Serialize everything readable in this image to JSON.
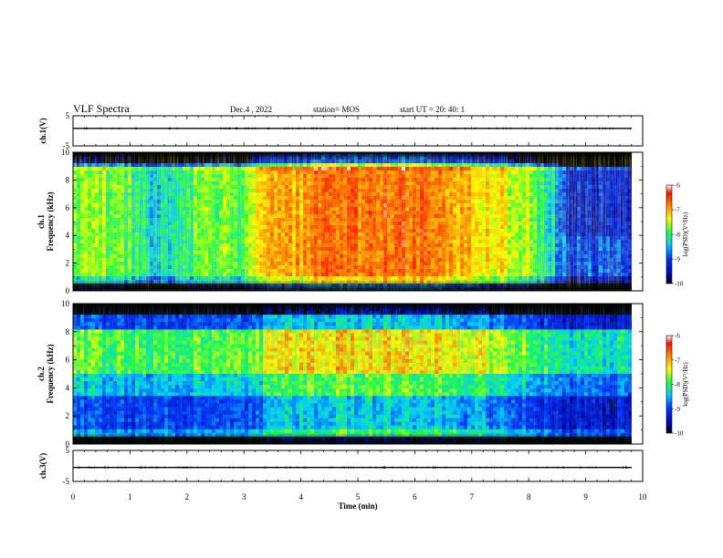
{
  "header": {
    "title": "VLF Spectra",
    "date": "Dec.4 , 2022",
    "station": "station= MOS",
    "start": "start UT =  20: 40: 1"
  },
  "chart_data": {
    "type": "heatmap",
    "x": {
      "label": "Time (min)",
      "range": [
        0,
        10
      ],
      "ticks": [
        "0",
        "1",
        "2",
        "3",
        "4",
        "5",
        "6",
        "7",
        "8",
        "9",
        "10"
      ]
    },
    "panels": [
      {
        "id": "ch1-waveform",
        "ylabel": "ch.1(V)",
        "yrange": [
          -5,
          5
        ],
        "ticks": [
          "5",
          "-5"
        ]
      },
      {
        "id": "ch1-spectrogram",
        "ylabel": "ch.1 Frequency (kHz)",
        "yrange": [
          0,
          10
        ],
        "ticks": [
          "0",
          "2",
          "4",
          "6",
          "8",
          "10"
        ],
        "colorbar": {
          "label": "log(PSD)(V²/Hz)",
          "range": [
            -10,
            -6
          ],
          "ticks": [
            "-6",
            "-7",
            "-8",
            "-9",
            "-10"
          ]
        }
      },
      {
        "id": "ch2-spectrogram",
        "ylabel": "ch.2 Frequency (kHz)",
        "yrange": [
          0,
          10
        ],
        "ticks": [
          "0",
          "2",
          "4",
          "6",
          "8",
          "10"
        ],
        "colorbar": {
          "label": "log(PSD)(V²/Hz)",
          "range": [
            -10,
            -6
          ],
          "ticks": [
            "-6",
            "-7",
            "-8",
            "-9",
            "-10"
          ]
        }
      },
      {
        "id": "ch3-waveform",
        "ylabel": "ch.3(V)",
        "yrange": [
          -5,
          5
        ],
        "ticks": [
          "5",
          "-5"
        ]
      }
    ],
    "ch1_level_profile": [
      [
        0,
        -7.8
      ],
      [
        0.5,
        -7.6
      ],
      [
        1.0,
        -8.0
      ],
      [
        1.5,
        -8.4
      ],
      [
        2.0,
        -7.9
      ],
      [
        2.5,
        -7.8
      ],
      [
        3.0,
        -7.9
      ],
      [
        3.2,
        -7.2
      ],
      [
        3.6,
        -6.9
      ],
      [
        4.0,
        -7.0
      ],
      [
        4.3,
        -6.7
      ],
      [
        5.0,
        -6.6
      ],
      [
        6.0,
        -6.6
      ],
      [
        6.8,
        -7.0
      ],
      [
        7.5,
        -7.3
      ],
      [
        8.0,
        -7.6
      ],
      [
        8.4,
        -8.2
      ],
      [
        8.7,
        -9.0
      ],
      [
        9.2,
        -8.9
      ],
      [
        9.8,
        -9.0
      ]
    ],
    "ch2_level_profile": [
      [
        0,
        -8.5
      ],
      [
        1.0,
        -8.6
      ],
      [
        2.0,
        -8.6
      ],
      [
        3.0,
        -8.6
      ],
      [
        3.5,
        -8.2
      ],
      [
        4.0,
        -8.0
      ],
      [
        5.0,
        -7.9
      ],
      [
        6.0,
        -8.0
      ],
      [
        7.0,
        -8.1
      ],
      [
        8.0,
        -8.5
      ],
      [
        8.5,
        -8.9
      ],
      [
        9.5,
        -9.0
      ]
    ]
  }
}
